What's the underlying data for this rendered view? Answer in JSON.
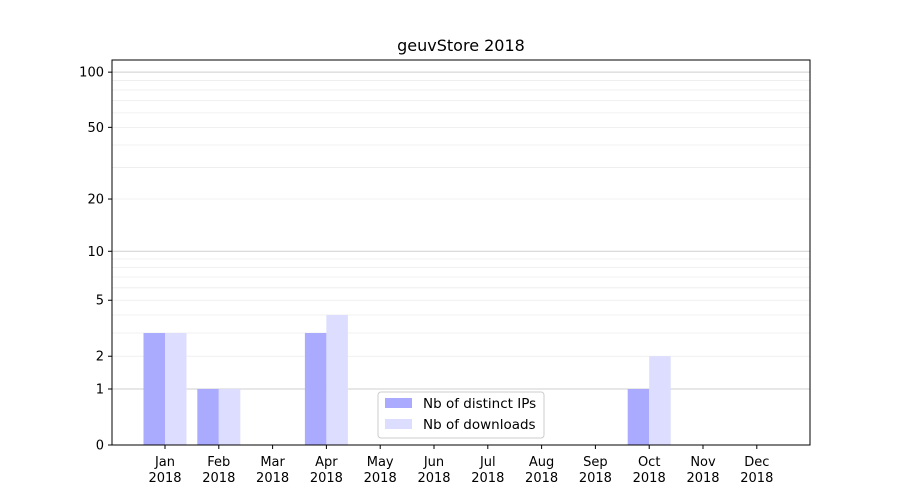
{
  "chart_data": {
    "type": "bar",
    "title": "geuvStore 2018",
    "xlabel": "",
    "ylabel": "",
    "yscale": "symlog",
    "ylim": [
      0,
      120
    ],
    "yticks": [
      0,
      1,
      2,
      5,
      10,
      20,
      50,
      100
    ],
    "categories": [
      [
        "Jan",
        "2018"
      ],
      [
        "Feb",
        "2018"
      ],
      [
        "Mar",
        "2018"
      ],
      [
        "Apr",
        "2018"
      ],
      [
        "May",
        "2018"
      ],
      [
        "Jun",
        "2018"
      ],
      [
        "Jul",
        "2018"
      ],
      [
        "Aug",
        "2018"
      ],
      [
        "Sep",
        "2018"
      ],
      [
        "Oct",
        "2018"
      ],
      [
        "Nov",
        "2018"
      ],
      [
        "Dec",
        "2018"
      ]
    ],
    "series": [
      {
        "name": "Nb of distinct IPs",
        "color": "#aaaaff",
        "values": [
          3,
          1,
          0,
          3,
          0,
          0,
          0,
          0,
          0,
          1,
          0,
          0
        ]
      },
      {
        "name": "Nb of downloads",
        "color": "#ddddff",
        "values": [
          3,
          1,
          0,
          4,
          0,
          0,
          0,
          0,
          0,
          2,
          0,
          0
        ]
      }
    ],
    "grid": {
      "major_y": [
        1,
        10,
        100
      ],
      "minor_y": true
    },
    "legend": "bottom-center"
  }
}
